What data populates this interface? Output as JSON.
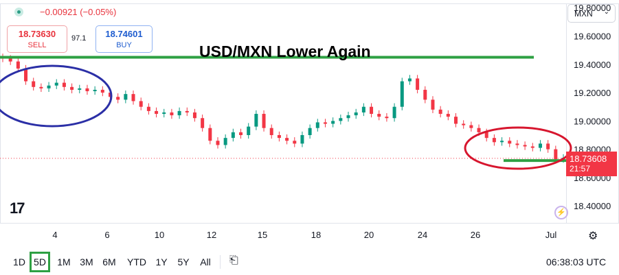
{
  "header": {
    "change_text": "−0.00921 (−0.05%)",
    "sell_price": "18.73630",
    "sell_label": "SELL",
    "spread": "97.1",
    "buy_price": "18.74601",
    "buy_label": "BUY"
  },
  "currency": {
    "selected": "MXN",
    "chevron": "⌄"
  },
  "logo_text": "17",
  "flash_icon": "⚡",
  "gear_icon": "⚙",
  "price_tag": {
    "price": "18.73608",
    "countdown": "21:57"
  },
  "bottom": {
    "ranges": [
      "1D",
      "5D",
      "1M",
      "3M",
      "6M",
      "YTD",
      "1Y",
      "5Y",
      "All"
    ],
    "active_range": "5D",
    "calendar_icon": "⎗",
    "clock": "06:38:03 UTC"
  },
  "colors": {
    "candle_up": "#089981",
    "candle_down": "#f23645",
    "annotation_green": "#2ea043",
    "circle_blue": "#2b2fa6",
    "circle_red": "#d7162e"
  },
  "chart_data": {
    "type": "line",
    "symbol": "USD/MXN",
    "annotation_title": "USD/MXN Lower Again",
    "x_tick_labels": [
      "4",
      "6",
      "10",
      "12",
      "15",
      "18",
      "20",
      "24",
      "26",
      "Jul"
    ],
    "y_tick_labels": [
      "19.80000",
      "19.60000",
      "19.40000",
      "19.20000",
      "19.00000",
      "18.80000",
      "18.60000",
      "18.40000"
    ],
    "ylim": [
      18.28,
      19.83
    ],
    "y_ticks": [
      19.8,
      19.6,
      19.4,
      19.2,
      19.0,
      18.8,
      18.6,
      18.4
    ],
    "current_price": 18.73608,
    "series": [
      {
        "values": [
          19.44,
          19.42,
          19.37,
          19.28,
          19.24,
          19.23,
          19.25,
          19.27,
          19.24,
          19.22,
          19.23,
          19.21,
          19.22,
          19.2,
          19.17,
          19.15,
          19.19,
          19.14,
          19.1,
          19.07,
          19.05,
          19.06,
          19.04,
          19.07,
          19.06,
          19.02,
          18.95,
          18.86,
          18.83,
          18.88,
          18.92,
          18.9,
          18.96,
          19.05,
          18.95,
          18.9,
          18.88,
          18.86,
          18.84,
          18.9,
          18.95,
          18.99,
          18.98,
          19.0,
          19.02,
          19.04,
          19.06,
          19.1,
          19.05,
          19.03,
          19.02,
          19.1,
          19.28,
          19.3,
          19.22,
          19.15,
          19.08,
          19.05,
          19.03,
          18.98,
          18.97,
          18.95,
          18.92,
          18.88,
          18.85,
          18.86,
          18.84,
          18.83,
          18.82,
          18.81,
          18.84,
          18.8,
          18.73,
          18.74
        ]
      }
    ],
    "annotations": {
      "resistance_level": 19.45,
      "support_level": 18.72
    }
  }
}
